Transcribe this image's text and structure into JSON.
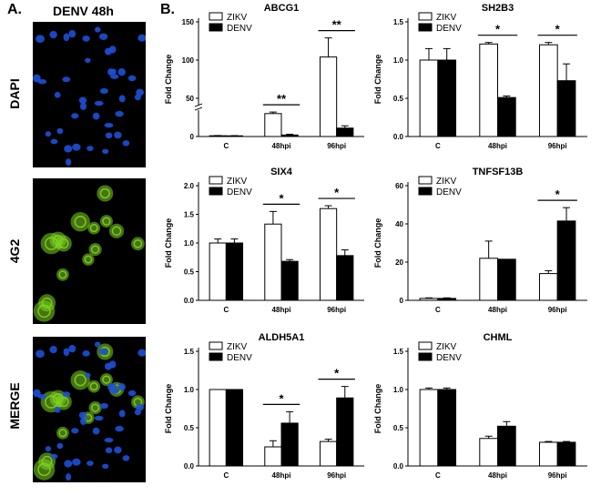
{
  "panel_a": {
    "letter": "A.",
    "title": "DENV 48h",
    "rows": [
      "DAPI",
      "4G2",
      "MERGE"
    ]
  },
  "panel_b": {
    "letter": "B."
  },
  "colors": {
    "zikv": "#ffffff",
    "denv": "#000000",
    "axis": "#000000",
    "dapi": "#1f4fd8",
    "stain_4g2": "#7ed321"
  },
  "chart_data": [
    {
      "type": "bar",
      "title": "ABCG1",
      "ylabel": "Fold Change",
      "categories": [
        "C",
        "48hpi",
        "96hpi"
      ],
      "ylim": [
        0,
        150
      ],
      "yticks": [
        0,
        50,
        100,
        150
      ],
      "series": [
        {
          "name": "ZIKV",
          "values": [
            1,
            30,
            104
          ],
          "errors": [
            0.3,
            2,
            25
          ]
        },
        {
          "name": "DENV",
          "values": [
            0.9,
            2,
            11
          ],
          "errors": [
            0.3,
            1,
            3
          ]
        }
      ],
      "yaxis_break": true,
      "significance": [
        {
          "category": "48hpi",
          "label": "**"
        },
        {
          "category": "96hpi",
          "label": "**"
        }
      ]
    },
    {
      "type": "bar",
      "title": "SH2B3",
      "ylabel": "Fold Change",
      "categories": [
        "C",
        "48hpi",
        "96hpi"
      ],
      "ylim": [
        0,
        1.5
      ],
      "yticks": [
        0.0,
        0.5,
        1.0,
        1.5
      ],
      "tick_labels": [
        "0.0",
        "0.5",
        "1.0",
        "1.5"
      ],
      "series": [
        {
          "name": "ZIKV",
          "values": [
            1.0,
            1.21,
            1.2
          ],
          "errors": [
            0.15,
            0.02,
            0.03
          ]
        },
        {
          "name": "DENV",
          "values": [
            1.0,
            0.51,
            0.73
          ],
          "errors": [
            0.15,
            0.02,
            0.22
          ]
        }
      ],
      "significance": [
        {
          "category": "48hpi",
          "label": "*"
        },
        {
          "category": "96hpi",
          "label": "*"
        }
      ]
    },
    {
      "type": "bar",
      "title": "SIX4",
      "ylabel": "Fold Change",
      "categories": [
        "C",
        "48hpi",
        "96hpi"
      ],
      "ylim": [
        0,
        2.0
      ],
      "yticks": [
        0.0,
        0.5,
        1.0,
        1.5,
        2.0
      ],
      "tick_labels": [
        "0.0",
        "0.5",
        "1.0",
        "1.5",
        "2.0"
      ],
      "series": [
        {
          "name": "ZIKV",
          "values": [
            1.0,
            1.33,
            1.6
          ],
          "errors": [
            0.07,
            0.22,
            0.05
          ]
        },
        {
          "name": "DENV",
          "values": [
            1.0,
            0.68,
            0.78
          ],
          "errors": [
            0.07,
            0.03,
            0.1
          ]
        }
      ],
      "significance": [
        {
          "category": "48hpi",
          "label": "*"
        },
        {
          "category": "96hpi",
          "label": "*"
        }
      ]
    },
    {
      "type": "bar",
      "title": "TNFSF13B",
      "ylabel": "Fold Change",
      "categories": [
        "C",
        "48hpi",
        "96hpi"
      ],
      "ylim": [
        0,
        60
      ],
      "yticks": [
        0,
        20,
        40,
        60
      ],
      "series": [
        {
          "name": "ZIKV",
          "values": [
            1,
            22,
            14
          ],
          "errors": [
            0.3,
            9,
            1.5
          ]
        },
        {
          "name": "DENV",
          "values": [
            1,
            21.5,
            41.5
          ],
          "errors": [
            0.3,
            0,
            7
          ]
        }
      ],
      "significance": [
        {
          "category": "96hpi",
          "label": "*"
        }
      ]
    },
    {
      "type": "bar",
      "title": "ALDH5A1",
      "ylabel": "Fold Change",
      "categories": [
        "C",
        "48hpi",
        "96hpi"
      ],
      "ylim": [
        0,
        1.5
      ],
      "yticks": [
        0.0,
        0.5,
        1.0,
        1.5
      ],
      "tick_labels": [
        "0.0",
        "0.5",
        "1.0",
        "1.5"
      ],
      "series": [
        {
          "name": "ZIKV",
          "values": [
            1.0,
            0.25,
            0.32
          ],
          "errors": [
            0,
            0.08,
            0.03
          ]
        },
        {
          "name": "DENV",
          "values": [
            1.0,
            0.56,
            0.89
          ],
          "errors": [
            0,
            0.15,
            0.15
          ]
        }
      ],
      "significance": [
        {
          "category": "48hpi",
          "label": "*"
        },
        {
          "category": "96hpi",
          "label": "*"
        }
      ]
    },
    {
      "type": "bar",
      "title": "CHML",
      "ylabel": "Fold Change",
      "categories": [
        "C",
        "48hpi",
        "96hpi"
      ],
      "ylim": [
        0,
        1.5
      ],
      "yticks": [
        0.0,
        0.5,
        1.0,
        1.5
      ],
      "tick_labels": [
        "0.0",
        "0.5",
        "1.0",
        "1.5"
      ],
      "series": [
        {
          "name": "ZIKV",
          "values": [
            1.0,
            0.36,
            0.31
          ],
          "errors": [
            0.02,
            0.03,
            0.01
          ]
        },
        {
          "name": "DENV",
          "values": [
            1.0,
            0.52,
            0.31
          ],
          "errors": [
            0.02,
            0.06,
            0.01
          ]
        }
      ],
      "significance": []
    }
  ]
}
